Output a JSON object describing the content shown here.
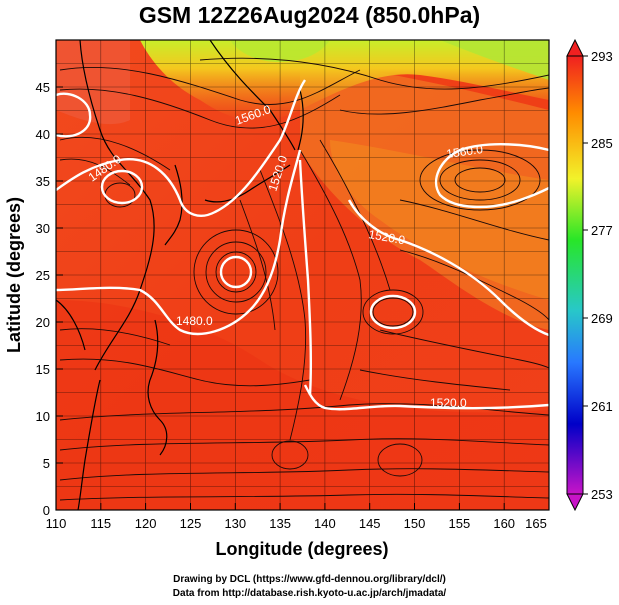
{
  "title": "GSM 12Z26Aug2024 (850.0hPa)",
  "xlabel": "Longitude (degrees)",
  "ylabel": "Latitude (degrees)",
  "x_ticks": [
    "110",
    "115",
    "120",
    "125",
    "130",
    "135",
    "140",
    "145",
    "150",
    "155",
    "160",
    "165"
  ],
  "y_ticks": [
    "0",
    "5",
    "10",
    "15",
    "20",
    "25",
    "30",
    "35",
    "40",
    "45"
  ],
  "colorbar": {
    "ticks": [
      "293",
      "285",
      "277",
      "269",
      "261",
      "253"
    ],
    "colors": [
      "#f02020",
      "#ff8c00",
      "#f2f22a",
      "#28e628",
      "#28c8c8",
      "#2878ff",
      "#0000c8",
      "#c814c8"
    ]
  },
  "contour_labels": [
    {
      "text": "1560.0"
    },
    {
      "text": "1520.0"
    },
    {
      "text": "1480.0"
    },
    {
      "text": "1560.0"
    },
    {
      "text": "1520.0"
    },
    {
      "text": "1480.0"
    }
  ],
  "credits": {
    "line1": "Drawing by DCL (https://www.gfd-dennou.org/library/dcl/)",
    "line2": "Data from http://database.rish.kyoto-u.ac.jp/arch/jmadata/"
  }
}
